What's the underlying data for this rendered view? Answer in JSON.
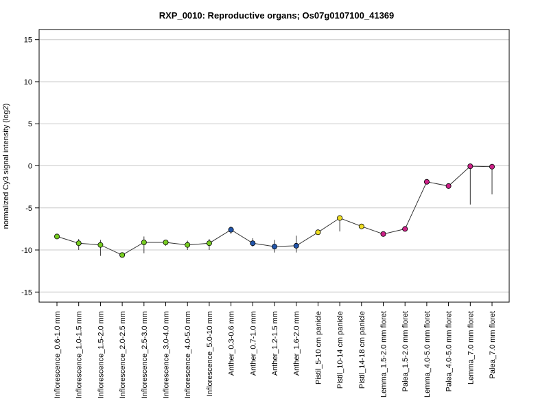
{
  "chart_data": {
    "type": "line",
    "title": "RXP_0010: Reproductive organs; Os07g0107100_41369",
    "xlabel": "",
    "ylabel": "normalized Cy3 signal intensity (log2)",
    "ylim": [
      -16.2,
      16.2
    ],
    "yticks": [
      -15,
      -10,
      -5,
      0,
      5,
      10,
      15
    ],
    "grid": "horizontal",
    "legend": "none",
    "categories": [
      "Inflorescence_0.6-1.0 mm",
      "Inflorescence_1.0-1.5 mm",
      "Inflorescence_1.5-2.0 mm",
      "Inflorescence_2.0-2.5 mm",
      "Inflorescence_2.5-3.0 mm",
      "Inflorescence_3.0-4.0 mm",
      "Inflorescence_4.0-5.0 mm",
      "Inflorescence_5.0-10 mm",
      "Anther_0.3-0.6 mm",
      "Anther_0.7-1.0 mm",
      "Anther_1.2-1.5 mm",
      "Anther_1.6-2.0 mm",
      "Pistil_5-10 cm panicle",
      "Pistil_10-14 cm panicle",
      "Pistil_14-18 cm panicle",
      "Lemma_1.5-2.0 mm floret",
      "Palea_1.5-2.0 mm floret",
      "Lemma_4.0-5.0 mm floret",
      "Palea_4.0-5.0 mm floret",
      "Lemma_7.0 mm floret",
      "Palea_7.0 mm floret"
    ],
    "values": [
      -8.4,
      -9.2,
      -9.4,
      -10.6,
      -9.1,
      -9.1,
      -9.4,
      -9.2,
      -7.6,
      -9.2,
      -9.6,
      -9.5,
      -7.9,
      -6.2,
      -7.2,
      -8.1,
      -7.5,
      -1.9,
      -2.4,
      -0.05,
      -0.1
    ],
    "error_low": [
      -8.4,
      -10.0,
      -10.7,
      -10.6,
      -10.4,
      -9.5,
      -10.0,
      -10.0,
      -8.1,
      -9.6,
      -10.3,
      -10.3,
      -8.2,
      -7.8,
      -7.5,
      -8.4,
      -7.7,
      -2.1,
      -2.7,
      -4.6,
      -3.4
    ],
    "error_high": [
      -8.4,
      -8.7,
      -8.8,
      -10.6,
      -8.4,
      -8.8,
      -8.9,
      -8.7,
      -7.2,
      -8.6,
      -8.8,
      -8.3,
      -7.7,
      -5.9,
      -6.9,
      -7.8,
      -7.3,
      -1.7,
      -2.2,
      0.0,
      0.0
    ],
    "colors": [
      "#77cc22",
      "#77cc22",
      "#77cc22",
      "#77cc22",
      "#77cc22",
      "#77cc22",
      "#77cc22",
      "#77cc22",
      "#2255aa",
      "#2255aa",
      "#2255aa",
      "#2255aa",
      "#eedd22",
      "#eedd22",
      "#eedd22",
      "#cc2288",
      "#cc2288",
      "#cc2288",
      "#cc2288",
      "#cc2288",
      "#cc2288"
    ]
  }
}
